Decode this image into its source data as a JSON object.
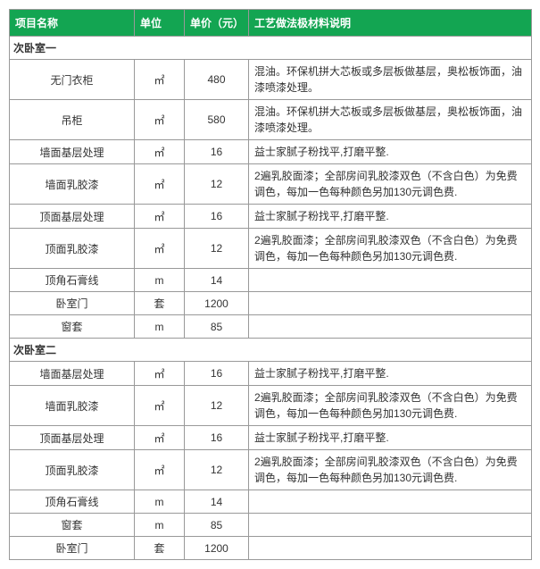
{
  "colors": {
    "header_bg": "#13a552",
    "header_text": "#ffffff",
    "border": "#999999",
    "cell_bg": "#ffffff",
    "text": "#333333"
  },
  "columns": {
    "name": "项目名称",
    "unit": "单位",
    "price": "单价（元）",
    "desc": "工艺做法极材料说明"
  },
  "sections": [
    {
      "title": "次卧室一",
      "rows": [
        {
          "name": "无门衣柜",
          "unit": "㎡",
          "price": "480",
          "desc": "混油。环保机拼大芯板或多层板做基层，奥松板饰面，油漆喷漆处理。",
          "tall": true
        },
        {
          "name": "吊柜",
          "unit": "㎡",
          "price": "580",
          "desc": "混油。环保机拼大芯板或多层板做基层，奥松板饰面，油漆喷漆处理。",
          "tall": true
        },
        {
          "name": "墙面基层处理",
          "unit": "㎡",
          "price": "16",
          "desc": "益士家腻子粉找平,打磨平整."
        },
        {
          "name": "墙面乳胶漆",
          "unit": "㎡",
          "price": "12",
          "desc": "2遍乳胶面漆；全部房间乳胶漆双色（不含白色）为免费调色，每加一色每种颜色另加130元调色费.",
          "tall": true
        },
        {
          "name": "顶面基层处理",
          "unit": "㎡",
          "price": "16",
          "desc": "益士家腻子粉找平,打磨平整."
        },
        {
          "name": "顶面乳胶漆",
          "unit": "㎡",
          "price": "12",
          "desc": "2遍乳胶面漆；全部房间乳胶漆双色（不含白色）为免费调色，每加一色每种颜色另加130元调色费.",
          "tall": true
        },
        {
          "name": "顶角石膏线",
          "unit": "m",
          "price": "14",
          "desc": ""
        },
        {
          "name": "卧室门",
          "unit": "套",
          "price": "1200",
          "desc": "",
          "short": true
        },
        {
          "name": "窗套",
          "unit": "m",
          "price": "85",
          "desc": "",
          "short": true
        }
      ]
    },
    {
      "title": "次卧室二",
      "rows": [
        {
          "name": "墙面基层处理",
          "unit": "㎡",
          "price": "16",
          "desc": "益士家腻子粉找平,打磨平整."
        },
        {
          "name": "墙面乳胶漆",
          "unit": "㎡",
          "price": "12",
          "desc": "2遍乳胶面漆；全部房间乳胶漆双色（不含白色）为免费调色，每加一色每种颜色另加130元调色费.",
          "tall": true
        },
        {
          "name": "顶面基层处理",
          "unit": "㎡",
          "price": "16",
          "desc": "益士家腻子粉找平,打磨平整."
        },
        {
          "name": "顶面乳胶漆",
          "unit": "㎡",
          "price": "12",
          "desc": "2遍乳胶面漆；全部房间乳胶漆双色（不含白色）为免费调色，每加一色每种颜色另加130元调色费.",
          "tall": true
        },
        {
          "name": "顶角石膏线",
          "unit": "m",
          "price": "14",
          "desc": ""
        },
        {
          "name": "窗套",
          "unit": "m",
          "price": "85",
          "desc": "",
          "short": true
        },
        {
          "name": "卧室门",
          "unit": "套",
          "price": "1200",
          "desc": "",
          "short": true
        }
      ]
    }
  ]
}
